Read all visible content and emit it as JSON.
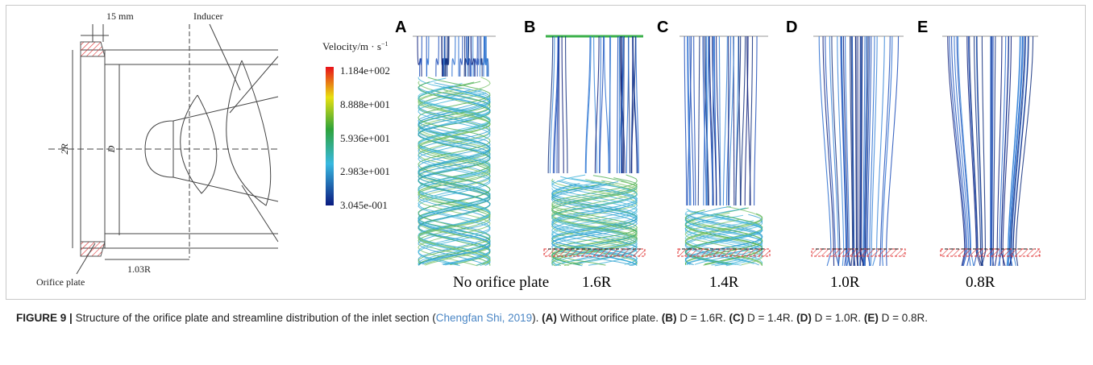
{
  "figure": {
    "schematic": {
      "dimension_top": "15 mm",
      "inducer": "Inducer",
      "dimension_2r": "2R",
      "dimension_d": "D",
      "dimension_bottom": "1.03R",
      "orifice_plate": "Orifice plate"
    },
    "legend": {
      "title": "Velocity/m · s",
      "title_exponent": "−1",
      "ticks": [
        "1.184e+002",
        "8.888e+001",
        "5.936e+001",
        "2.983e+001",
        "3.045e-001"
      ]
    },
    "panels": [
      {
        "letter": "A",
        "caption": "No orifice plate"
      },
      {
        "letter": "B",
        "caption": "1.6R"
      },
      {
        "letter": "C",
        "caption": "1.4R"
      },
      {
        "letter": "D",
        "caption": "1.0R"
      },
      {
        "letter": "E",
        "caption": "0.8R"
      }
    ]
  },
  "caption": {
    "label": "FIGURE 9 |",
    "text": "Structure of the orifice plate and streamline distribution of the inlet section (",
    "citation": "Chengfan Shi, 2019",
    "text_end": ").",
    "items": [
      {
        "label": "(A)",
        "text": "Without orifice plate."
      },
      {
        "label": "(B)",
        "text": "D = 1.6R."
      },
      {
        "label": "(C)",
        "text": "D = 1.4R."
      },
      {
        "label": "(D)",
        "text": "D = 1.0R."
      },
      {
        "label": "(E)",
        "text": "D = 0.8R."
      }
    ]
  }
}
